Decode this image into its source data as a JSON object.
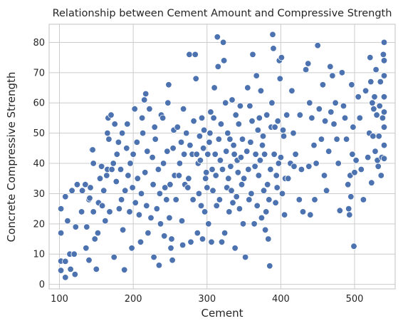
{
  "chart_data": {
    "type": "scatter",
    "title": "Relationship between Cement Amount and Compressive Strength",
    "xlabel": "Cement",
    "ylabel": "Concrete Compressive Strength",
    "xlim": [
      86,
      555
    ],
    "ylim": [
      -1.5,
      86
    ],
    "xticks": [
      100,
      200,
      300,
      400,
      500
    ],
    "yticks": [
      0,
      10,
      20,
      30,
      40,
      50,
      60,
      70,
      80
    ],
    "grid": true,
    "color": "#4c72b0",
    "points": [
      [
        102,
        25
      ],
      [
        102,
        17
      ],
      [
        102,
        7.7
      ],
      [
        102,
        4.6
      ],
      [
        108,
        7.6
      ],
      [
        108,
        2.3
      ],
      [
        108,
        29
      ],
      [
        111,
        21
      ],
      [
        114,
        10
      ],
      [
        115,
        5
      ],
      [
        117,
        31
      ],
      [
        120,
        10
      ],
      [
        121,
        3.3
      ],
      [
        122,
        19
      ],
      [
        124,
        33
      ],
      [
        130,
        24
      ],
      [
        131,
        31
      ],
      [
        135,
        33
      ],
      [
        136,
        12
      ],
      [
        137,
        19
      ],
      [
        140,
        28
      ],
      [
        140,
        8
      ],
      [
        141,
        28.5
      ],
      [
        142,
        32
      ],
      [
        144,
        44.5
      ],
      [
        145,
        44.5
      ],
      [
        146,
        40
      ],
      [
        146,
        24
      ],
      [
        148,
        15
      ],
      [
        150,
        5
      ],
      [
        152,
        17
      ],
      [
        153,
        27
      ],
      [
        155,
        35
      ],
      [
        157,
        39
      ],
      [
        158,
        26
      ],
      [
        160,
        31
      ],
      [
        162,
        21
      ],
      [
        164,
        36
      ],
      [
        165,
        50
      ],
      [
        165,
        38
      ],
      [
        166,
        55
      ],
      [
        167,
        48
      ],
      [
        168,
        24
      ],
      [
        170,
        56
      ],
      [
        171,
        38
      ],
      [
        173,
        40
      ],
      [
        174,
        9
      ],
      [
        175,
        53
      ],
      [
        177,
        34
      ],
      [
        178,
        43
      ],
      [
        180,
        47
      ],
      [
        181,
        25
      ],
      [
        183,
        38
      ],
      [
        184,
        28
      ],
      [
        185,
        50
      ],
      [
        186,
        18
      ],
      [
        188,
        4.8
      ],
      [
        189,
        31
      ],
      [
        191,
        45
      ],
      [
        192,
        53
      ],
      [
        193,
        36
      ],
      [
        195,
        24
      ],
      [
        196,
        40
      ],
      [
        198,
        12
      ],
      [
        199,
        32
      ],
      [
        200,
        43
      ],
      [
        202,
        58
      ],
      [
        203,
        27
      ],
      [
        205,
        47
      ],
      [
        206,
        35
      ],
      [
        208,
        23
      ],
      [
        210,
        14
      ],
      [
        211,
        30
      ],
      [
        212,
        55
      ],
      [
        213,
        50
      ],
      [
        215,
        61
      ],
      [
        216,
        37
      ],
      [
        217,
        63
      ],
      [
        218,
        26
      ],
      [
        219,
        44
      ],
      [
        220,
        17
      ],
      [
        222,
        58
      ],
      [
        224,
        22
      ],
      [
        226,
        42
      ],
      [
        227,
        33
      ],
      [
        228,
        9
      ],
      [
        229,
        52
      ],
      [
        230,
        48
      ],
      [
        232,
        25
      ],
      [
        234,
        38
      ],
      [
        235,
        6.3
      ],
      [
        236,
        30
      ],
      [
        237,
        20
      ],
      [
        238,
        56
      ],
      [
        240,
        55
      ],
      [
        241,
        40
      ],
      [
        242,
        16
      ],
      [
        243,
        32
      ],
      [
        245,
        28
      ],
      [
        246,
        44
      ],
      [
        247,
        60
      ],
      [
        248,
        66
      ],
      [
        249,
        22
      ],
      [
        250,
        33
      ],
      [
        251,
        12
      ],
      [
        252,
        15
      ],
      [
        253,
        8
      ],
      [
        254,
        45
      ],
      [
        255,
        51
      ],
      [
        256,
        36
      ],
      [
        258,
        28
      ],
      [
        260,
        52
      ],
      [
        262,
        36
      ],
      [
        263,
        40
      ],
      [
        265,
        47
      ],
      [
        266,
        21
      ],
      [
        267,
        13
      ],
      [
        268,
        58
      ],
      [
        269,
        43
      ],
      [
        270,
        33
      ],
      [
        272,
        50
      ],
      [
        274,
        32
      ],
      [
        275,
        35
      ],
      [
        276,
        76
      ],
      [
        277,
        46
      ],
      [
        278,
        14
      ],
      [
        280,
        43
      ],
      [
        281,
        28
      ],
      [
        282,
        54
      ],
      [
        284,
        76
      ],
      [
        285,
        68
      ],
      [
        286,
        43
      ],
      [
        287,
        17
      ],
      [
        288,
        40
      ],
      [
        289,
        30
      ],
      [
        290,
        49
      ],
      [
        291,
        41
      ],
      [
        292,
        26
      ],
      [
        293,
        55
      ],
      [
        294,
        15
      ],
      [
        295,
        45
      ],
      [
        296,
        51
      ],
      [
        297,
        24
      ],
      [
        298,
        35
      ],
      [
        299,
        37
      ],
      [
        300,
        32
      ],
      [
        301,
        43
      ],
      [
        302,
        20
      ],
      [
        303,
        47
      ],
      [
        304,
        50
      ],
      [
        305,
        57
      ],
      [
        306,
        14
      ],
      [
        307,
        38
      ],
      [
        308,
        31
      ],
      [
        309,
        55
      ],
      [
        310,
        65
      ],
      [
        311,
        43
      ],
      [
        312,
        36
      ],
      [
        313,
        26
      ],
      [
        314,
        81.8
      ],
      [
        315,
        72
      ],
      [
        316,
        48
      ],
      [
        317,
        28
      ],
      [
        318,
        41
      ],
      [
        319,
        53
      ],
      [
        320,
        14
      ],
      [
        321,
        38
      ],
      [
        322,
        80
      ],
      [
        323,
        74
      ],
      [
        324,
        17
      ],
      [
        325,
        60
      ],
      [
        326,
        44
      ],
      [
        327,
        32
      ],
      [
        328,
        50
      ],
      [
        329,
        35
      ],
      [
        330,
        24
      ],
      [
        331,
        48
      ],
      [
        332,
        39
      ],
      [
        333,
        31
      ],
      [
        334,
        61
      ],
      [
        335,
        27
      ],
      [
        336,
        46
      ],
      [
        337,
        43
      ],
      [
        338,
        12
      ],
      [
        339,
        56
      ],
      [
        340,
        29
      ],
      [
        341,
        41
      ],
      [
        342,
        37
      ],
      [
        343,
        53
      ],
      [
        344,
        25
      ],
      [
        345,
        59
      ],
      [
        346,
        42
      ],
      [
        347,
        33
      ],
      [
        348,
        48
      ],
      [
        349,
        20
      ],
      [
        350,
        35
      ],
      [
        352,
        9
      ],
      [
        354,
        44
      ],
      [
        355,
        65
      ],
      [
        356,
        38
      ],
      [
        357,
        28
      ],
      [
        358,
        59
      ],
      [
        359,
        47
      ],
      [
        360,
        30
      ],
      [
        361,
        54
      ],
      [
        362,
        76
      ],
      [
        364,
        20
      ],
      [
        365,
        39
      ],
      [
        366,
        43
      ],
      [
        367,
        69
      ],
      [
        368,
        26
      ],
      [
        369,
        51
      ],
      [
        370,
        36
      ],
      [
        371,
        55
      ],
      [
        372,
        41
      ],
      [
        373,
        64
      ],
      [
        374,
        22
      ],
      [
        375,
        46
      ],
      [
        376,
        49
      ],
      [
        377,
        31
      ],
      [
        378,
        43
      ],
      [
        379,
        18
      ],
      [
        380,
        24
      ],
      [
        381,
        56
      ],
      [
        382,
        33
      ],
      [
        383,
        15
      ],
      [
        384,
        28
      ],
      [
        385,
        6.1
      ],
      [
        386,
        38
      ],
      [
        387,
        52
      ],
      [
        388,
        60
      ],
      [
        389,
        82.6
      ],
      [
        390,
        78
      ],
      [
        391,
        43
      ],
      [
        392,
        52
      ],
      [
        393,
        27
      ],
      [
        394,
        36
      ],
      [
        395,
        32
      ],
      [
        396,
        54
      ],
      [
        397,
        40
      ],
      [
        398,
        74
      ],
      [
        399,
        68
      ],
      [
        400,
        42
      ],
      [
        401,
        75
      ],
      [
        402,
        30
      ],
      [
        403,
        51
      ],
      [
        404,
        49
      ],
      [
        405,
        23
      ],
      [
        406,
        35
      ],
      [
        408,
        56
      ],
      [
        410,
        35
      ],
      [
        413,
        40
      ],
      [
        415,
        64
      ],
      [
        417,
        50
      ],
      [
        418,
        39
      ],
      [
        420,
        43
      ],
      [
        425,
        28
      ],
      [
        426,
        56
      ],
      [
        428,
        38
      ],
      [
        430,
        24
      ],
      [
        434,
        71
      ],
      [
        437,
        73
      ],
      [
        438,
        39
      ],
      [
        439,
        60
      ],
      [
        440,
        23
      ],
      [
        442,
        55
      ],
      [
        445,
        46
      ],
      [
        446,
        28
      ],
      [
        448,
        40
      ],
      [
        450,
        79
      ],
      [
        452,
        58
      ],
      [
        455,
        48
      ],
      [
        457,
        66
      ],
      [
        459,
        36
      ],
      [
        460,
        54
      ],
      [
        462,
        31
      ],
      [
        465,
        44
      ],
      [
        467,
        72
      ],
      [
        468,
        57
      ],
      [
        470,
        69
      ],
      [
        472,
        53
      ],
      [
        474,
        60
      ],
      [
        476,
        48
      ],
      [
        478,
        40
      ],
      [
        480,
        24.4
      ],
      [
        483,
        70
      ],
      [
        485,
        59
      ],
      [
        487,
        55
      ],
      [
        489,
        48
      ],
      [
        491,
        33
      ],
      [
        492,
        25
      ],
      [
        493,
        23
      ],
      [
        494,
        36
      ],
      [
        495,
        29
      ],
      [
        496,
        66
      ],
      [
        497,
        43
      ],
      [
        498,
        52
      ],
      [
        499,
        12.6
      ],
      [
        500,
        37
      ],
      [
        502,
        41
      ],
      [
        505,
        62
      ],
      [
        507,
        55
      ],
      [
        509,
        38
      ],
      [
        512,
        28
      ],
      [
        515,
        64
      ],
      [
        518,
        42
      ],
      [
        520,
        50
      ],
      [
        521,
        75
      ],
      [
        522,
        67
      ],
      [
        523,
        33.6
      ],
      [
        524,
        60
      ],
      [
        525,
        49
      ],
      [
        526,
        58
      ],
      [
        527,
        62
      ],
      [
        528,
        44
      ],
      [
        529,
        71
      ],
      [
        530,
        56
      ],
      [
        531,
        41
      ],
      [
        532,
        39
      ],
      [
        533,
        49
      ],
      [
        534,
        59
      ],
      [
        535,
        67
      ],
      [
        536,
        36
      ],
      [
        537,
        42
      ],
      [
        538,
        55
      ],
      [
        539,
        76
      ],
      [
        540,
        80
      ],
      [
        540,
        74
      ],
      [
        540,
        69
      ],
      [
        540,
        62
      ],
      [
        540,
        57
      ],
      [
        540,
        52
      ],
      [
        540,
        46
      ],
      [
        540,
        41.6
      ]
    ]
  }
}
